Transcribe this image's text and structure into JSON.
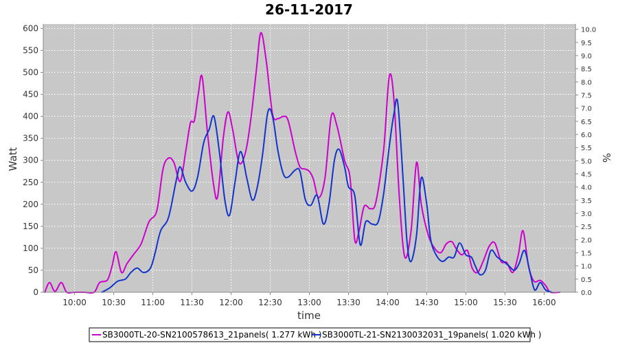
{
  "chart_data": {
    "type": "line",
    "title": "26-11-2017",
    "xlabel": "time",
    "ylabel": "Watt",
    "y2label": "%",
    "xlim": [
      9.6,
      16.4
    ],
    "ylim": [
      0,
      610
    ],
    "y2lim": [
      0,
      10.2
    ],
    "x_ticks": [
      "10:00",
      "10:30",
      "11:00",
      "11:30",
      "12:00",
      "12:30",
      "13:00",
      "13:30",
      "14:00",
      "14:30",
      "15:00",
      "15:30",
      "16:00"
    ],
    "y_ticks": [
      0,
      50,
      100,
      150,
      200,
      250,
      300,
      350,
      400,
      450,
      500,
      550,
      600
    ],
    "y2_ticks": [
      "0.0",
      "0.5",
      "1.0",
      "1.5",
      "2.0",
      "2.5",
      "3.0",
      "3.5",
      "4.0",
      "4.5",
      "5.0",
      "5.5",
      "6.0",
      "6.5",
      "7.0",
      "7.5",
      "8.0",
      "8.5",
      "9.0",
      "9.5",
      "10.0"
    ],
    "grid": true,
    "legend_position": "bottom",
    "series": [
      {
        "name": "SB3000TL-20-SN2100578613_21panels( 1.277 kWh )",
        "color": "#cc00cc",
        "points": [
          [
            9.62,
            0
          ],
          [
            9.68,
            22
          ],
          [
            9.75,
            2
          ],
          [
            9.83,
            22
          ],
          [
            9.9,
            0
          ],
          [
            10.0,
            0
          ],
          [
            10.12,
            0
          ],
          [
            10.25,
            0
          ],
          [
            10.32,
            22
          ],
          [
            10.42,
            28
          ],
          [
            10.48,
            60
          ],
          [
            10.53,
            92
          ],
          [
            10.6,
            45
          ],
          [
            10.67,
            65
          ],
          [
            10.75,
            85
          ],
          [
            10.85,
            110
          ],
          [
            10.95,
            160
          ],
          [
            11.05,
            185
          ],
          [
            11.13,
            280
          ],
          [
            11.2,
            305
          ],
          [
            11.27,
            295
          ],
          [
            11.35,
            252
          ],
          [
            11.42,
            320
          ],
          [
            11.48,
            385
          ],
          [
            11.53,
            390
          ],
          [
            11.58,
            450
          ],
          [
            11.63,
            490
          ],
          [
            11.7,
            360
          ],
          [
            11.78,
            240
          ],
          [
            11.83,
            220
          ],
          [
            11.9,
            350
          ],
          [
            11.96,
            410
          ],
          [
            12.02,
            370
          ],
          [
            12.1,
            295
          ],
          [
            12.18,
            315
          ],
          [
            12.25,
            390
          ],
          [
            12.32,
            500
          ],
          [
            12.38,
            590
          ],
          [
            12.45,
            525
          ],
          [
            12.53,
            405
          ],
          [
            12.6,
            395
          ],
          [
            12.67,
            400
          ],
          [
            12.73,
            390
          ],
          [
            12.82,
            320
          ],
          [
            12.88,
            285
          ],
          [
            12.95,
            280
          ],
          [
            13.0,
            275
          ],
          [
            13.05,
            258
          ],
          [
            13.12,
            215
          ],
          [
            13.2,
            260
          ],
          [
            13.28,
            400
          ],
          [
            13.35,
            380
          ],
          [
            13.45,
            300
          ],
          [
            13.52,
            260
          ],
          [
            13.58,
            120
          ],
          [
            13.63,
            135
          ],
          [
            13.7,
            195
          ],
          [
            13.78,
            190
          ],
          [
            13.85,
            205
          ],
          [
            13.95,
            325
          ],
          [
            14.02,
            490
          ],
          [
            14.08,
            440
          ],
          [
            14.15,
            215
          ],
          [
            14.22,
            80
          ],
          [
            14.3,
            140
          ],
          [
            14.37,
            295
          ],
          [
            14.43,
            200
          ],
          [
            14.52,
            130
          ],
          [
            14.6,
            100
          ],
          [
            14.68,
            90
          ],
          [
            14.75,
            110
          ],
          [
            14.82,
            115
          ],
          [
            14.88,
            98
          ],
          [
            14.95,
            85
          ],
          [
            15.02,
            95
          ],
          [
            15.08,
            55
          ],
          [
            15.15,
            45
          ],
          [
            15.22,
            70
          ],
          [
            15.3,
            105
          ],
          [
            15.37,
            112
          ],
          [
            15.45,
            70
          ],
          [
            15.52,
            68
          ],
          [
            15.6,
            45
          ],
          [
            15.67,
            85
          ],
          [
            15.73,
            140
          ],
          [
            15.8,
            60
          ],
          [
            15.87,
            25
          ],
          [
            15.95,
            27
          ],
          [
            16.02,
            15
          ],
          [
            16.08,
            0
          ],
          [
            16.2,
            0
          ]
        ]
      },
      {
        "name": "SB3000TL-21-SN2130032031_19panels( 1.020 kWh )",
        "color": "#1133cc",
        "points": [
          [
            10.35,
            0
          ],
          [
            10.45,
            10
          ],
          [
            10.55,
            25
          ],
          [
            10.65,
            30
          ],
          [
            10.72,
            45
          ],
          [
            10.8,
            55
          ],
          [
            10.88,
            45
          ],
          [
            10.97,
            55
          ],
          [
            11.03,
            90
          ],
          [
            11.1,
            140
          ],
          [
            11.2,
            170
          ],
          [
            11.3,
            255
          ],
          [
            11.35,
            285
          ],
          [
            11.42,
            250
          ],
          [
            11.5,
            230
          ],
          [
            11.57,
            260
          ],
          [
            11.65,
            340
          ],
          [
            11.72,
            370
          ],
          [
            11.78,
            400
          ],
          [
            11.85,
            320
          ],
          [
            11.92,
            210
          ],
          [
            11.98,
            175
          ],
          [
            12.05,
            250
          ],
          [
            12.12,
            320
          ],
          [
            12.2,
            260
          ],
          [
            12.27,
            210
          ],
          [
            12.33,
            235
          ],
          [
            12.4,
            310
          ],
          [
            12.47,
            410
          ],
          [
            12.53,
            400
          ],
          [
            12.6,
            320
          ],
          [
            12.67,
            268
          ],
          [
            12.73,
            262
          ],
          [
            12.82,
            278
          ],
          [
            12.88,
            275
          ],
          [
            12.95,
            210
          ],
          [
            13.02,
            198
          ],
          [
            13.1,
            220
          ],
          [
            13.18,
            155
          ],
          [
            13.25,
            200
          ],
          [
            13.32,
            300
          ],
          [
            13.38,
            325
          ],
          [
            13.45,
            285
          ],
          [
            13.5,
            240
          ],
          [
            13.58,
            220
          ],
          [
            13.65,
            108
          ],
          [
            13.72,
            160
          ],
          [
            13.8,
            155
          ],
          [
            13.88,
            160
          ],
          [
            13.95,
            225
          ],
          [
            14.02,
            330
          ],
          [
            14.08,
            405
          ],
          [
            14.13,
            430
          ],
          [
            14.2,
            250
          ],
          [
            14.25,
            110
          ],
          [
            14.3,
            70
          ],
          [
            14.37,
            130
          ],
          [
            14.43,
            260
          ],
          [
            14.5,
            200
          ],
          [
            14.55,
            120
          ],
          [
            14.62,
            85
          ],
          [
            14.7,
            70
          ],
          [
            14.78,
            80
          ],
          [
            14.85,
            80
          ],
          [
            14.92,
            112
          ],
          [
            15.0,
            85
          ],
          [
            15.07,
            80
          ],
          [
            15.12,
            60
          ],
          [
            15.18,
            40
          ],
          [
            15.25,
            50
          ],
          [
            15.32,
            95
          ],
          [
            15.4,
            80
          ],
          [
            15.48,
            70
          ],
          [
            15.55,
            60
          ],
          [
            15.62,
            50
          ],
          [
            15.68,
            65
          ],
          [
            15.75,
            95
          ],
          [
            15.82,
            45
          ],
          [
            15.88,
            5
          ],
          [
            15.95,
            22
          ],
          [
            16.02,
            5
          ],
          [
            16.1,
            0
          ]
        ]
      }
    ]
  }
}
